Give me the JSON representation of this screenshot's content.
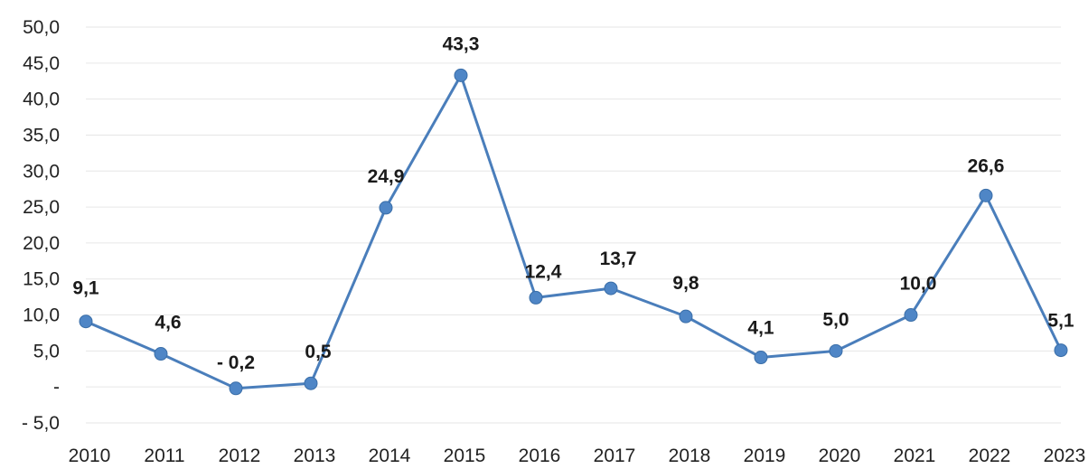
{
  "chart_data": {
    "type": "line",
    "title": "",
    "xlabel": "",
    "ylabel": "",
    "x": [
      "2010",
      "2011",
      "2012",
      "2013",
      "2014",
      "2015",
      "2016",
      "2017",
      "2018",
      "2019",
      "2020",
      "2021",
      "2022",
      "2023"
    ],
    "series": [
      {
        "values": [
          9.1,
          4.6,
          -0.2,
          0.5,
          24.9,
          43.3,
          12.4,
          13.7,
          9.8,
          4.1,
          5.0,
          10.0,
          26.6,
          5.1
        ],
        "labels": [
          "9,1",
          "4,6",
          "- 0,2",
          "0,5",
          "24,9",
          "43,3",
          "12,4",
          "13,7",
          "9,8",
          "4,1",
          "5,0",
          "10,0",
          "26,6",
          "5,1"
        ]
      }
    ],
    "ylim": [
      -5,
      50
    ],
    "yticks": [
      50,
      45,
      40,
      35,
      30,
      25,
      20,
      15,
      10,
      5,
      0,
      -5
    ],
    "ytick_labels": [
      "50,0",
      "45,0",
      "40,0",
      "35,0",
      "30,0",
      "25,0",
      "20,0",
      "15,0",
      "10,0",
      "5,0",
      "-",
      "- 5,0"
    ],
    "grid": true,
    "legend": "none",
    "colors": {
      "line": "#4a7ebb",
      "marker": "#4f86c6",
      "marker_edge": "#3a6ea8",
      "grid": "#e6e6e6"
    }
  }
}
